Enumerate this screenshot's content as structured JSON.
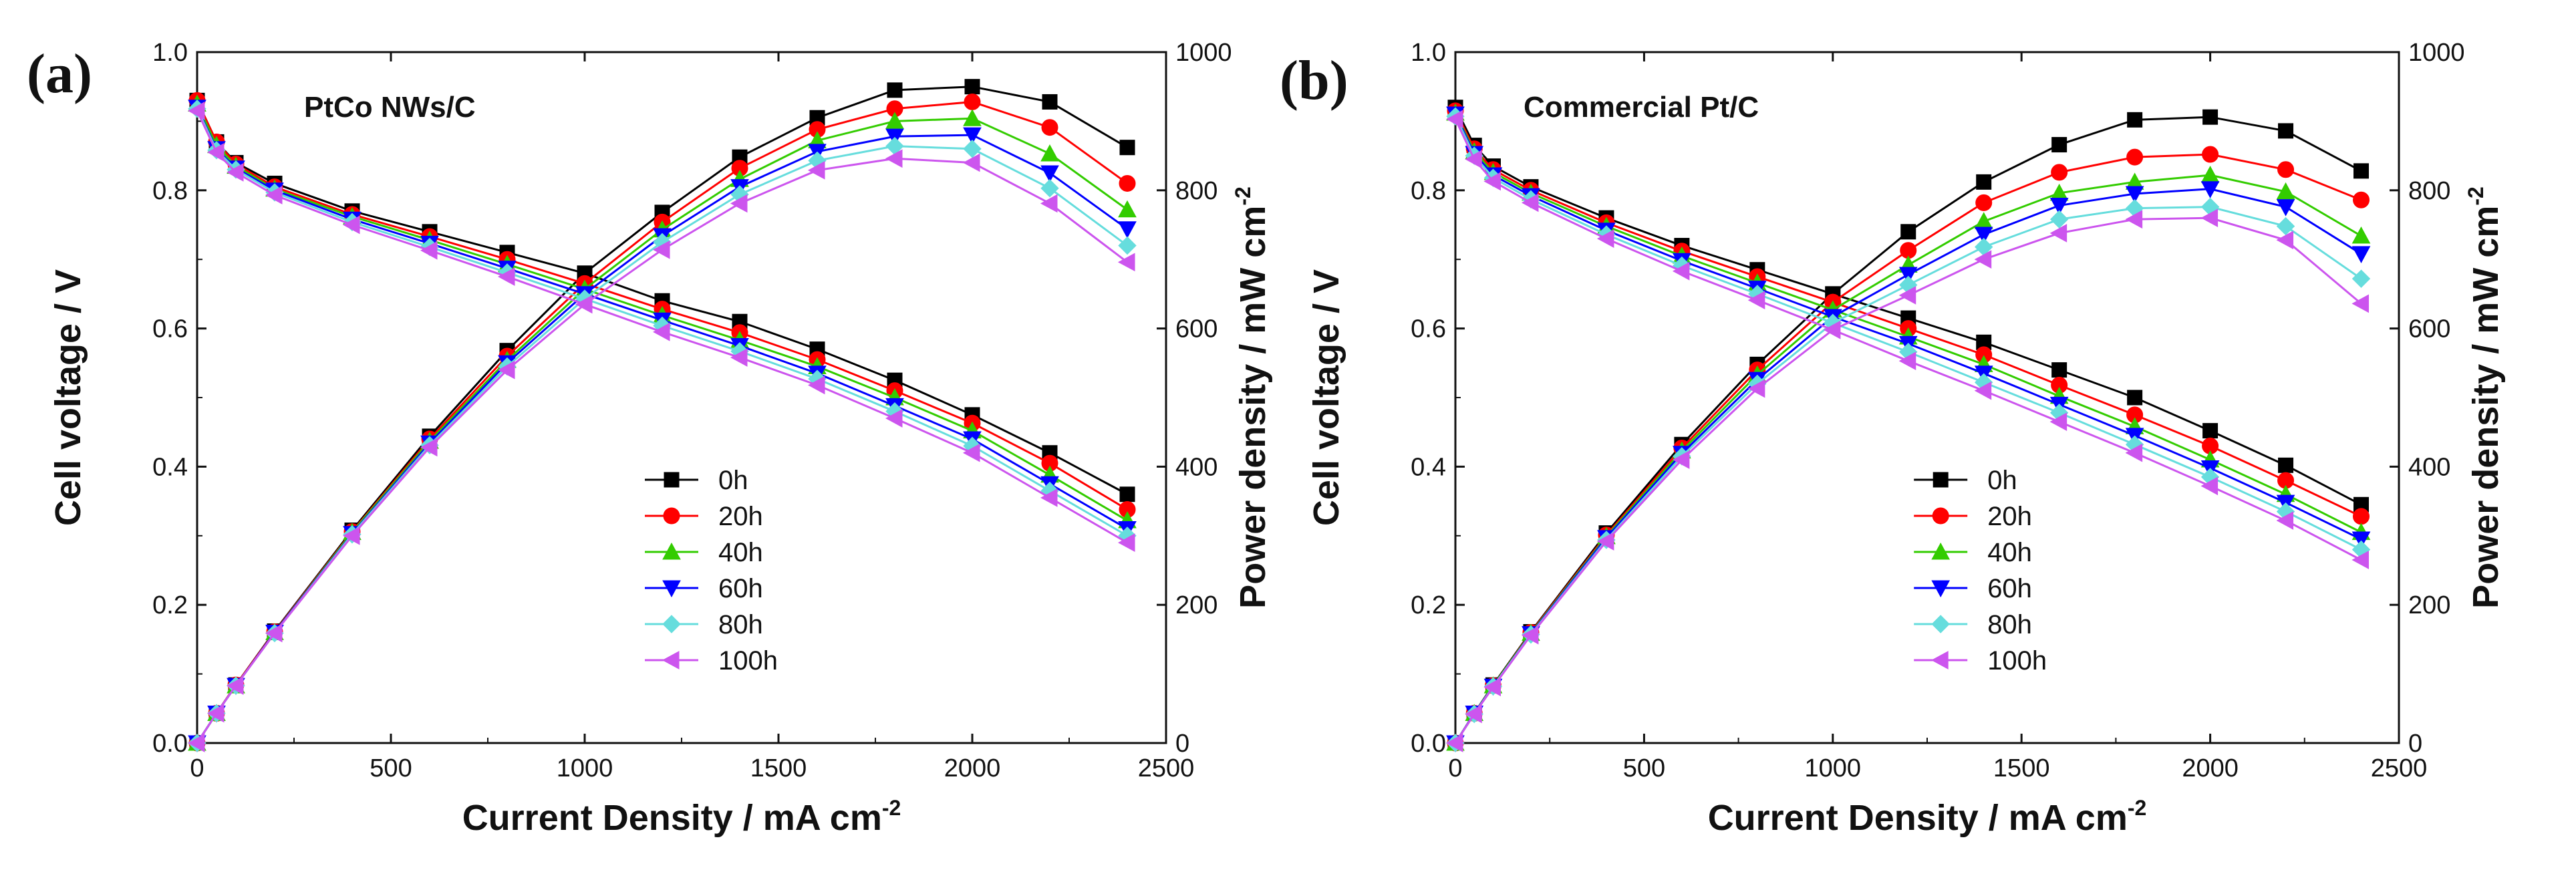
{
  "chart_data": [
    {
      "type": "line",
      "panel_label": "(a)",
      "title": "PtCo NWs/C",
      "xlabel": "Current Density / mA cm",
      "xlabel_sup": "-2",
      "ylabel": "Cell voltage / V",
      "ylabel2": "Power density / mW cm",
      "ylabel2_sup": "-2",
      "xlim": [
        0,
        2500
      ],
      "ylim": [
        0.0,
        1.0
      ],
      "y2lim": [
        0,
        1000
      ],
      "xticks": [
        "0",
        "500",
        "1000",
        "1500",
        "2000",
        "2500"
      ],
      "yticks": [
        "0.0",
        "0.2",
        "0.4",
        "0.6",
        "0.8",
        "1.0"
      ],
      "y2ticks": [
        "0",
        "200",
        "400",
        "600",
        "800",
        "1000"
      ],
      "x": [
        0,
        50,
        100,
        200,
        400,
        600,
        800,
        1000,
        1200,
        1400,
        1600,
        1800,
        2000,
        2200,
        2400
      ],
      "legend_placement": "lower-center",
      "series": [
        {
          "name": "0h",
          "color": "#000000",
          "marker": "square",
          "voltage": [
            0.93,
            0.87,
            0.84,
            0.81,
            0.77,
            0.74,
            0.71,
            0.68,
            0.64,
            0.61,
            0.57,
            0.525,
            0.475,
            0.42,
            0.36
          ],
          "power": [
            0,
            43,
            84,
            162,
            308,
            444,
            568,
            680,
            768,
            848,
            905,
            945,
            950,
            928,
            862
          ]
        },
        {
          "name": "20h",
          "color": "#ff0000",
          "marker": "circle",
          "voltage": [
            0.93,
            0.87,
            0.838,
            0.805,
            0.765,
            0.733,
            0.7,
            0.665,
            0.628,
            0.594,
            0.555,
            0.51,
            0.463,
            0.405,
            0.338
          ],
          "power": [
            0,
            43,
            84,
            161,
            306,
            440,
            560,
            665,
            754,
            832,
            888,
            918,
            928,
            891,
            810
          ]
        },
        {
          "name": "40h",
          "color": "#33cc00",
          "marker": "triangle-up",
          "voltage": [
            0.925,
            0.865,
            0.835,
            0.802,
            0.762,
            0.728,
            0.693,
            0.657,
            0.619,
            0.583,
            0.545,
            0.5,
            0.452,
            0.388,
            0.322
          ],
          "power": [
            0,
            43,
            83,
            160,
            305,
            437,
            554,
            657,
            743,
            816,
            872,
            900,
            904,
            853,
            772
          ]
        },
        {
          "name": "60h",
          "color": "#0000ff",
          "marker": "triangle-down",
          "voltage": [
            0.92,
            0.86,
            0.832,
            0.8,
            0.758,
            0.723,
            0.687,
            0.65,
            0.612,
            0.575,
            0.535,
            0.488,
            0.44,
            0.375,
            0.31
          ],
          "power": [
            0,
            43,
            83,
            160,
            303,
            434,
            550,
            650,
            734,
            805,
            856,
            878,
            880,
            825,
            744
          ]
        },
        {
          "name": "80h",
          "color": "#66dddd",
          "marker": "diamond",
          "voltage": [
            0.918,
            0.858,
            0.83,
            0.797,
            0.754,
            0.718,
            0.681,
            0.643,
            0.604,
            0.567,
            0.527,
            0.48,
            0.43,
            0.365,
            0.3
          ],
          "power": [
            0,
            43,
            83,
            159,
            302,
            431,
            545,
            643,
            725,
            794,
            843,
            864,
            860,
            803,
            720
          ]
        },
        {
          "name": "100h",
          "color": "#cc55ee",
          "marker": "triangle-left",
          "voltage": [
            0.915,
            0.855,
            0.826,
            0.793,
            0.75,
            0.713,
            0.675,
            0.635,
            0.595,
            0.558,
            0.518,
            0.47,
            0.42,
            0.355,
            0.29
          ],
          "power": [
            0,
            43,
            83,
            159,
            300,
            428,
            540,
            635,
            714,
            781,
            829,
            846,
            840,
            781,
            696
          ]
        }
      ]
    },
    {
      "type": "line",
      "panel_label": "(b)",
      "title": "Commercial Pt/C",
      "xlabel": "Current Density / mA cm",
      "xlabel_sup": "-2",
      "ylabel": "Cell voltage / V",
      "ylabel2": "Power density / mW cm",
      "ylabel2_sup": "-2",
      "xlim": [
        0,
        2500
      ],
      "ylim": [
        0.0,
        1.0
      ],
      "y2lim": [
        0,
        1000
      ],
      "xticks": [
        "0",
        "500",
        "1000",
        "1500",
        "2000",
        "2500"
      ],
      "yticks": [
        "0.0",
        "0.2",
        "0.4",
        "0.6",
        "0.8",
        "1.0"
      ],
      "y2ticks": [
        "0",
        "200",
        "400",
        "600",
        "800",
        "1000"
      ],
      "x": [
        0,
        50,
        100,
        200,
        400,
        600,
        800,
        1000,
        1200,
        1400,
        1600,
        1800,
        2000,
        2200,
        2400
      ],
      "legend_placement": "lower-center",
      "series": [
        {
          "name": "0h",
          "color": "#000000",
          "marker": "square",
          "voltage": [
            0.92,
            0.865,
            0.835,
            0.805,
            0.76,
            0.72,
            0.685,
            0.65,
            0.615,
            0.58,
            0.54,
            0.5,
            0.452,
            0.402,
            0.345
          ],
          "power": [
            0,
            43,
            84,
            161,
            304,
            432,
            548,
            650,
            740,
            812,
            866,
            902,
            906,
            886,
            828
          ]
        },
        {
          "name": "20h",
          "color": "#ff0000",
          "marker": "circle",
          "voltage": [
            0.915,
            0.86,
            0.83,
            0.8,
            0.753,
            0.712,
            0.675,
            0.638,
            0.6,
            0.562,
            0.518,
            0.475,
            0.43,
            0.38,
            0.328
          ],
          "power": [
            0,
            43,
            83,
            160,
            301,
            427,
            540,
            638,
            713,
            782,
            826,
            848,
            852,
            830,
            786
          ]
        },
        {
          "name": "40h",
          "color": "#33cc00",
          "marker": "triangle-up",
          "voltage": [
            0.912,
            0.856,
            0.826,
            0.796,
            0.748,
            0.705,
            0.666,
            0.627,
            0.588,
            0.548,
            0.502,
            0.458,
            0.41,
            0.36,
            0.305
          ],
          "power": [
            0,
            43,
            83,
            159,
            299,
            423,
            533,
            627,
            692,
            755,
            796,
            812,
            822,
            798,
            734
          ]
        },
        {
          "name": "60h",
          "color": "#0000ff",
          "marker": "triangle-down",
          "voltage": [
            0.91,
            0.853,
            0.822,
            0.792,
            0.742,
            0.698,
            0.658,
            0.617,
            0.578,
            0.535,
            0.49,
            0.445,
            0.398,
            0.348,
            0.295
          ],
          "power": [
            0,
            43,
            82,
            158,
            297,
            419,
            526,
            617,
            678,
            736,
            778,
            795,
            802,
            776,
            708
          ]
        },
        {
          "name": "80h",
          "color": "#66dddd",
          "marker": "diamond",
          "voltage": [
            0.907,
            0.85,
            0.818,
            0.787,
            0.736,
            0.691,
            0.65,
            0.608,
            0.566,
            0.522,
            0.478,
            0.432,
            0.385,
            0.335,
            0.28
          ],
          "power": [
            0,
            42,
            82,
            157,
            294,
            415,
            520,
            608,
            663,
            718,
            758,
            774,
            776,
            748,
            672
          ]
        },
        {
          "name": "100h",
          "color": "#cc55ee",
          "marker": "triangle-left",
          "voltage": [
            0.903,
            0.845,
            0.813,
            0.782,
            0.73,
            0.683,
            0.641,
            0.598,
            0.553,
            0.51,
            0.465,
            0.42,
            0.372,
            0.322,
            0.265
          ],
          "power": [
            0,
            42,
            81,
            156,
            292,
            410,
            513,
            598,
            648,
            700,
            738,
            758,
            760,
            728,
            636
          ]
        }
      ]
    }
  ]
}
